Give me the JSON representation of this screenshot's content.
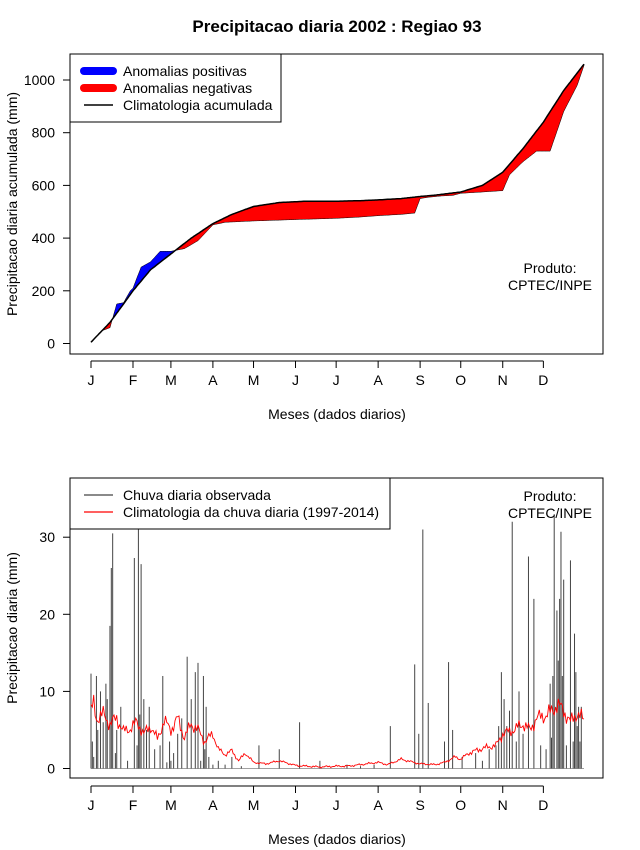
{
  "chart_data": [
    {
      "type": "area",
      "title": "Precipitacao diaria 2002 : Regiao 93",
      "xlabel": "Meses (dados diarios)",
      "ylabel": "Precipitacao diaria acumulada (mm)",
      "ylim": [
        0,
        1100
      ],
      "y_ticks": [
        0,
        200,
        400,
        600,
        800,
        1000
      ],
      "x_ticks": [
        {
          "label": "J",
          "day": 1
        },
        {
          "label": "F",
          "day": 32
        },
        {
          "label": "M",
          "day": 60
        },
        {
          "label": "A",
          "day": 91
        },
        {
          "label": "M",
          "day": 121
        },
        {
          "label": "J",
          "day": 152
        },
        {
          "label": "J",
          "day": 182
        },
        {
          "label": "A",
          "day": 213
        },
        {
          "label": "S",
          "day": 244
        },
        {
          "label": "O",
          "day": 274
        },
        {
          "label": "N",
          "day": 305
        },
        {
          "label": "D",
          "day": 335
        }
      ],
      "legend": [
        "Anomalias positivas",
        "Anomalias negativas",
        "Climatologia acumulada"
      ],
      "annotation": [
        "Produto:",
        "CPTEC/INPE"
      ],
      "colors": {
        "positive": "#0000ff",
        "negative": "#ff0000",
        "climatology": "#000000"
      },
      "climatology_cumulative": {
        "days": [
          1,
          15,
          25,
          32,
          45,
          60,
          75,
          91,
          105,
          121,
          140,
          160,
          182,
          200,
          213,
          230,
          244,
          255,
          274,
          290,
          305,
          320,
          335,
          350,
          365
        ],
        "values": [
          5,
          80,
          150,
          200,
          280,
          340,
          400,
          455,
          490,
          520,
          535,
          540,
          540,
          542,
          545,
          550,
          558,
          563,
          575,
          600,
          650,
          740,
          840,
          960,
          1060
        ]
      },
      "observed_cumulative": {
        "days": [
          1,
          10,
          15,
          20,
          25,
          30,
          32,
          38,
          45,
          52,
          60,
          70,
          80,
          91,
          100,
          121,
          150,
          182,
          200,
          213,
          230,
          240,
          244,
          250,
          260,
          268,
          274,
          290,
          305,
          310,
          320,
          330,
          340,
          350,
          360,
          365
        ],
        "values": [
          5,
          50,
          60,
          150,
          155,
          200,
          210,
          290,
          310,
          350,
          350,
          360,
          390,
          450,
          460,
          465,
          470,
          475,
          480,
          485,
          490,
          495,
          550,
          555,
          560,
          562,
          570,
          575,
          580,
          640,
          690,
          730,
          730,
          880,
          980,
          1055
        ]
      }
    },
    {
      "type": "bar",
      "xlabel": "Meses (dados diarios)",
      "ylabel": "Precipitacao diaria (mm)",
      "ylim": [
        0,
        36
      ],
      "y_ticks": [
        0,
        10,
        20,
        30
      ],
      "x_ticks": [
        "J",
        "F",
        "M",
        "A",
        "M",
        "J",
        "J",
        "A",
        "S",
        "O",
        "N",
        "D"
      ],
      "legend": [
        "Chuva diaria observada",
        "Climatologia da chuva diaria (1997-2014)"
      ],
      "annotation": [
        "Produto:",
        "CPTEC/INPE"
      ],
      "colors": {
        "observed": "#444444",
        "climatology": "#ff0000"
      },
      "observed_daily": {
        "days": [
          1,
          2,
          3,
          5,
          6,
          8,
          10,
          12,
          13,
          15,
          16,
          17,
          19,
          20,
          23,
          28,
          33,
          35,
          36,
          37,
          38,
          40,
          42,
          44,
          48,
          52,
          54,
          57,
          59,
          60,
          62,
          65,
          68,
          72,
          75,
          78,
          80,
          82,
          84,
          85,
          86,
          88,
          91,
          95,
          100,
          105,
          112,
          125,
          140,
          155,
          170,
          190,
          200,
          210,
          222,
          240,
          243,
          246,
          250,
          262,
          265,
          268,
          275,
          285,
          290,
          295,
          300,
          302,
          304,
          306,
          308,
          310,
          312,
          315,
          317,
          320,
          324,
          328,
          333,
          337,
          340,
          341,
          342,
          343,
          345,
          346,
          347,
          348,
          349,
          350,
          352,
          355,
          357,
          358,
          359,
          360,
          361,
          362,
          363
        ],
        "values": [
          12.3,
          3.5,
          1.5,
          12,
          5,
          10,
          6,
          11,
          9,
          18.5,
          26,
          30.5,
          2,
          5,
          8,
          1,
          27.3,
          3,
          31,
          7,
          26.5,
          9,
          5,
          8,
          2.5,
          3,
          12,
          0.8,
          3.5,
          1,
          2,
          4.5,
          6.5,
          14.5,
          9,
          12.5,
          13.7,
          1,
          12,
          2.5,
          8,
          1.5,
          0.5,
          1,
          0.5,
          1.5,
          0.3,
          3,
          2.5,
          6,
          1,
          0.5,
          0.3,
          0.5,
          5.5,
          13.5,
          4.5,
          31,
          8.5,
          3.5,
          13.8,
          5,
          1.5,
          2,
          1,
          2.5,
          3,
          5.5,
          12.5,
          9,
          5.5,
          7.5,
          32,
          3.5,
          10,
          4.5,
          27.5,
          22,
          3,
          2.5,
          11,
          4,
          12,
          33,
          20.5,
          14,
          22,
          30.7,
          12,
          24.5,
          3,
          27,
          3.5,
          17.5,
          12.5,
          5.5,
          8,
          3.5,
          8
        ]
      },
      "climatology_daily": {
        "days": [
          1,
          3,
          5,
          10,
          15,
          20,
          25,
          30,
          35,
          40,
          45,
          50,
          55,
          60,
          65,
          70,
          75,
          80,
          85,
          91,
          95,
          100,
          105,
          110,
          115,
          121,
          130,
          140,
          152,
          160,
          170,
          182,
          190,
          200,
          213,
          220,
          230,
          244,
          255,
          262,
          270,
          274,
          280,
          290,
          300,
          305,
          310,
          315,
          320,
          325,
          330,
          335,
          340,
          345,
          350,
          355,
          360,
          365
        ],
        "values": [
          7.5,
          8.3,
          6.5,
          7.0,
          5.8,
          6.5,
          4.8,
          5.2,
          6.0,
          4.5,
          5.5,
          3.8,
          6.2,
          5.0,
          6.5,
          4.0,
          5.8,
          5.0,
          3.5,
          4.5,
          2.5,
          1.8,
          2.3,
          1.0,
          2.0,
          0.8,
          0.6,
          1.0,
          0.4,
          0.3,
          0.2,
          0.3,
          0.3,
          0.5,
          0.8,
          0.5,
          1.2,
          0.6,
          0.5,
          0.8,
          1.5,
          1.2,
          2.0,
          2.6,
          3.0,
          4.5,
          4.8,
          5.2,
          5.8,
          5.0,
          6.5,
          6.8,
          7.2,
          8.3,
          7.5,
          6.0,
          7.2,
          6.2
        ]
      }
    }
  ]
}
